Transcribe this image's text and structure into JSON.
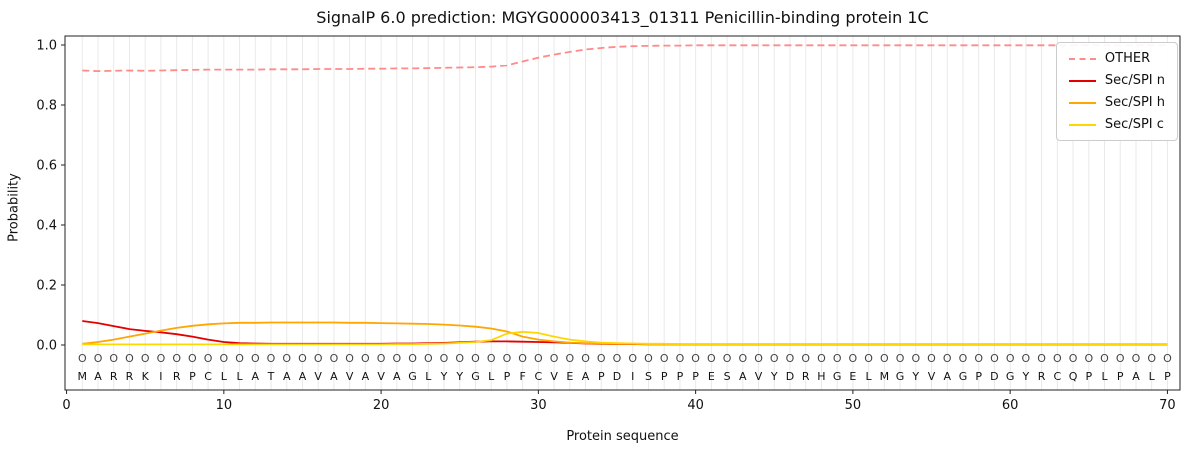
{
  "chart_data": {
    "type": "line",
    "title": "SignalP 6.0 prediction: MGYG000003413_01311 Penicillin-binding protein 1C",
    "xlabel": "Protein sequence",
    "ylabel": "Probability",
    "xlim": [
      -0.1,
      70.8
    ],
    "ylim": [
      -0.15,
      1.03
    ],
    "x_ticks": [
      0,
      10,
      20,
      30,
      40,
      50,
      60,
      70
    ],
    "y_ticks": [
      0.0,
      0.2,
      0.4,
      0.6,
      0.8,
      1.0
    ],
    "grid": "vertical line at every residue position",
    "grid_color": "#e9e9e9",
    "legend_position": "upper right",
    "sequence": "MARRKIRPCLLATAAVAVAVAGLYYGLPFCVEAPDISPPPESAVYDRHGELMGYVAGPDGYRCQPLPALP",
    "residue_labels": "OOOOOOOOOOOOOOOOOOOOOOOOOOOOOOOOOOOOOOOOOOOOOOOOOOOOOOOOOOOOOOOOOOOOOO",
    "series": [
      {
        "name": "OTHER",
        "color": "#ff8a8a",
        "dashed": true,
        "values": [
          0.915,
          0.913,
          0.914,
          0.915,
          0.914,
          0.915,
          0.916,
          0.917,
          0.918,
          0.918,
          0.918,
          0.918,
          0.919,
          0.919,
          0.919,
          0.92,
          0.92,
          0.92,
          0.921,
          0.921,
          0.922,
          0.922,
          0.923,
          0.924,
          0.925,
          0.926,
          0.928,
          0.932,
          0.945,
          0.958,
          0.968,
          0.977,
          0.985,
          0.99,
          0.994,
          0.996,
          0.997,
          0.998,
          0.998,
          0.999,
          0.999,
          0.999,
          0.999,
          0.999,
          0.999,
          0.999,
          0.999,
          0.999,
          0.999,
          0.999,
          0.999,
          0.999,
          0.999,
          0.999,
          0.999,
          0.999,
          0.999,
          0.999,
          0.999,
          0.999,
          0.999,
          0.999,
          0.999,
          0.999,
          0.999,
          0.999,
          0.999,
          0.999,
          0.999,
          0.999
        ]
      },
      {
        "name": "Sec/SPI n",
        "color": "#e50000",
        "dashed": false,
        "values": [
          0.08,
          0.073,
          0.063,
          0.053,
          0.047,
          0.042,
          0.036,
          0.028,
          0.018,
          0.01,
          0.006,
          0.005,
          0.004,
          0.004,
          0.004,
          0.004,
          0.004,
          0.004,
          0.004,
          0.004,
          0.005,
          0.005,
          0.006,
          0.007,
          0.009,
          0.011,
          0.012,
          0.012,
          0.011,
          0.01,
          0.009,
          0.007,
          0.005,
          0.004,
          0.003,
          0.003,
          0.002,
          0.002,
          0.002,
          0.002,
          0.002,
          0.002,
          0.002,
          0.002,
          0.002,
          0.002,
          0.002,
          0.002,
          0.002,
          0.002,
          0.002,
          0.002,
          0.002,
          0.002,
          0.002,
          0.002,
          0.002,
          0.002,
          0.002,
          0.002,
          0.002,
          0.002,
          0.002,
          0.002,
          0.002,
          0.002,
          0.002,
          0.002,
          0.002,
          0.002
        ]
      },
      {
        "name": "Sec/SPI h",
        "color": "#ffa600",
        "dashed": false,
        "values": [
          0.004,
          0.01,
          0.018,
          0.028,
          0.038,
          0.048,
          0.057,
          0.064,
          0.069,
          0.072,
          0.074,
          0.074,
          0.075,
          0.075,
          0.075,
          0.075,
          0.075,
          0.074,
          0.074,
          0.073,
          0.072,
          0.071,
          0.07,
          0.068,
          0.065,
          0.061,
          0.055,
          0.045,
          0.028,
          0.018,
          0.012,
          0.008,
          0.006,
          0.005,
          0.004,
          0.004,
          0.003,
          0.003,
          0.003,
          0.003,
          0.003,
          0.003,
          0.003,
          0.003,
          0.003,
          0.003,
          0.003,
          0.003,
          0.003,
          0.003,
          0.003,
          0.003,
          0.003,
          0.003,
          0.003,
          0.003,
          0.003,
          0.003,
          0.003,
          0.003,
          0.003,
          0.003,
          0.003,
          0.003,
          0.003,
          0.003,
          0.003,
          0.003,
          0.003,
          0.003
        ]
      },
      {
        "name": "Sec/SPI c",
        "color": "#ffd700",
        "dashed": false,
        "values": [
          0.002,
          0.002,
          0.002,
          0.002,
          0.002,
          0.002,
          0.002,
          0.002,
          0.002,
          0.002,
          0.002,
          0.002,
          0.002,
          0.002,
          0.002,
          0.002,
          0.002,
          0.002,
          0.002,
          0.002,
          0.003,
          0.003,
          0.004,
          0.005,
          0.007,
          0.01,
          0.016,
          0.038,
          0.044,
          0.04,
          0.028,
          0.018,
          0.012,
          0.008,
          0.006,
          0.005,
          0.004,
          0.004,
          0.003,
          0.003,
          0.003,
          0.003,
          0.003,
          0.003,
          0.003,
          0.003,
          0.003,
          0.003,
          0.003,
          0.003,
          0.003,
          0.003,
          0.003,
          0.003,
          0.003,
          0.003,
          0.003,
          0.003,
          0.003,
          0.003,
          0.003,
          0.003,
          0.003,
          0.003,
          0.003,
          0.003,
          0.003,
          0.003,
          0.003,
          0.003
        ]
      }
    ]
  }
}
